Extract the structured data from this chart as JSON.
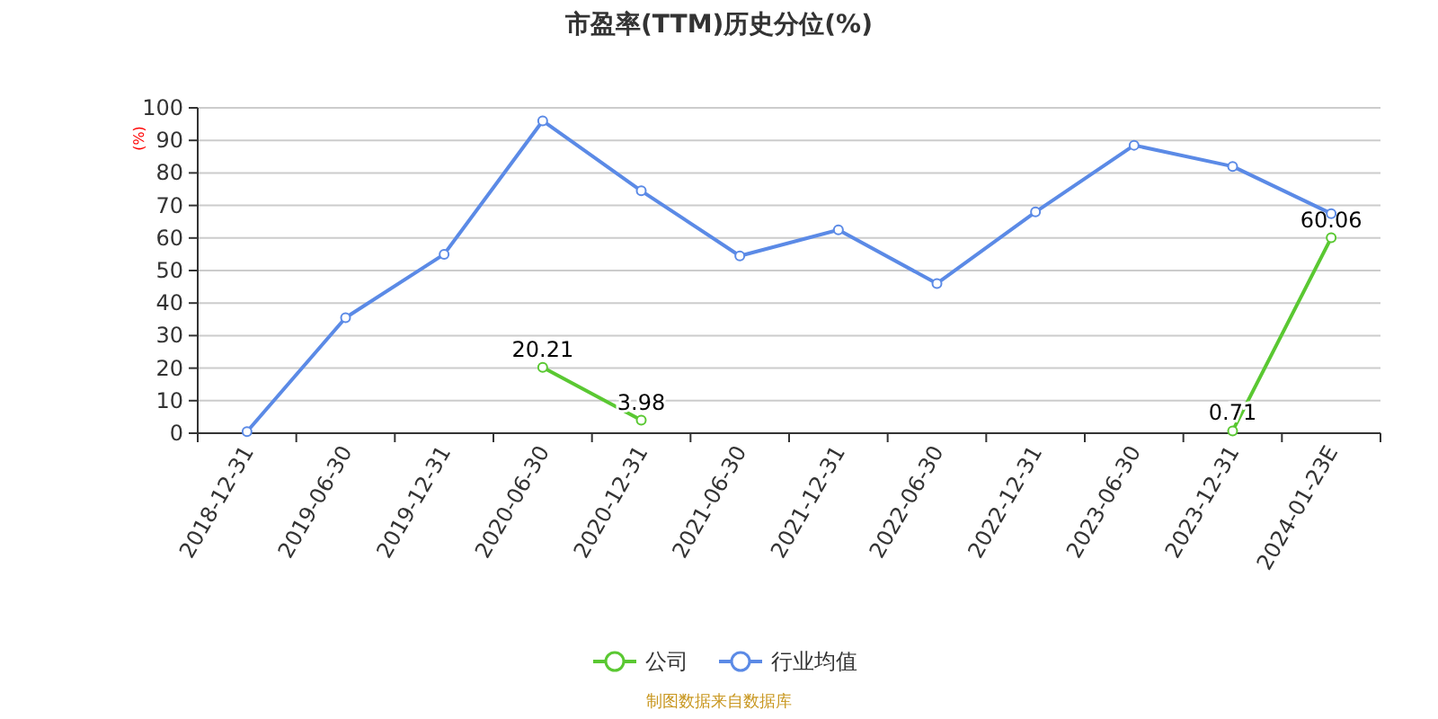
{
  "chart_data": {
    "type": "line",
    "title": "市盈率(TTM)历史分位(%)",
    "ylabel": "(%)",
    "categories": [
      "2018-12-31",
      "2019-06-30",
      "2019-12-31",
      "2020-06-30",
      "2020-12-31",
      "2021-06-30",
      "2021-12-31",
      "2022-06-30",
      "2022-12-31",
      "2023-06-30",
      "2023-12-31",
      "2024-01-23E"
    ],
    "series": [
      {
        "name": "公司",
        "color": "#5ac832",
        "values": [
          null,
          null,
          null,
          20.21,
          3.98,
          null,
          null,
          null,
          null,
          null,
          0.71,
          60.06
        ],
        "value_labels": [
          null,
          null,
          null,
          "20.21",
          "3.98",
          null,
          null,
          null,
          null,
          null,
          "0.71",
          "60.06"
        ]
      },
      {
        "name": "行业均值",
        "color": "#5b8ae6",
        "values": [
          0.5,
          35.5,
          55,
          96,
          74.5,
          54.5,
          62.5,
          46,
          68,
          88.5,
          82,
          67.5
        ]
      }
    ],
    "ylim": [
      0,
      100
    ],
    "yticks": [
      0,
      10,
      20,
      30,
      40,
      50,
      60,
      70,
      80,
      90,
      100
    ],
    "grid": "y",
    "legend": "bottom",
    "marker": "circle",
    "line_style": "solid",
    "annotations": [
      "制图数据来自数据库"
    ]
  }
}
